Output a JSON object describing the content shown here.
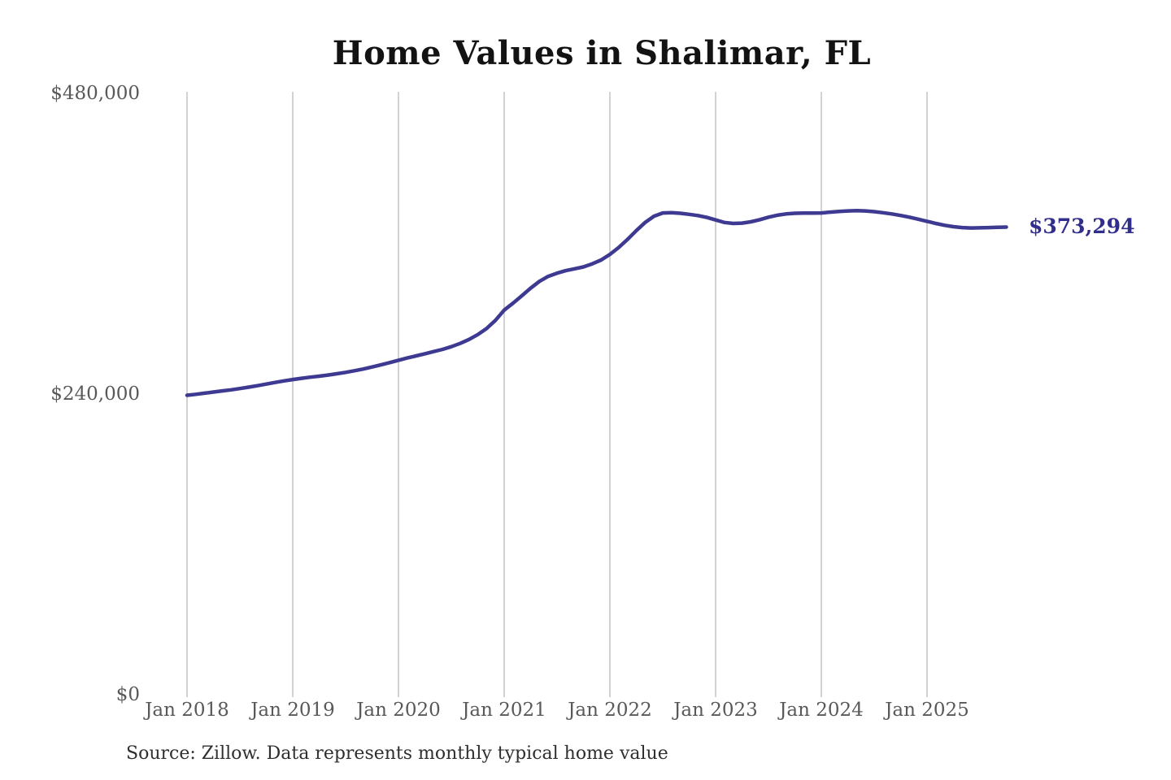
{
  "title": "Home Values in Shalimar, FL",
  "end_label": "$373,294",
  "source_note": "Source: Zillow. Data represents monthly typical home value",
  "colors": {
    "line": "#3e3a92",
    "end_label_text": "#312e8c",
    "gridline": "#bfbfbf",
    "axis_text": "#595959",
    "title_text": "#131313",
    "source_text": "#2f2f2f",
    "background": "#ffffff"
  },
  "chart_data": {
    "type": "line",
    "title": "Home Values in Shalimar, FL",
    "xlabel": "",
    "ylabel": "",
    "ylim": [
      0,
      480000
    ],
    "y_tick_values": [
      0,
      240000,
      480000
    ],
    "y_tick_labels": [
      "$0",
      "$240,000",
      "$480,000"
    ],
    "x_tick_labels": [
      "Jan 2018",
      "Jan 2019",
      "Jan 2020",
      "Jan 2021",
      "Jan 2022",
      "Jan 2023",
      "Jan 2024",
      "Jan 2025"
    ],
    "grid": "vertical-only",
    "legend": "none",
    "frequency": "monthly",
    "x_start": "2018-01",
    "x_end": "2025-10",
    "series": [
      {
        "name": "Typical home value",
        "values": [
          239000,
          239800,
          240700,
          241600,
          242500,
          243400,
          244400,
          245500,
          246700,
          248000,
          249300,
          250500,
          251600,
          252600,
          253500,
          254300,
          255200,
          256200,
          257300,
          258600,
          260000,
          261600,
          263300,
          265100,
          267000,
          268800,
          270500,
          272200,
          273900,
          275700,
          277800,
          280400,
          283600,
          287500,
          292300,
          298800,
          307000,
          312500,
          318500,
          324500,
          330000,
          334000,
          336500,
          338500,
          340000,
          341500,
          344000,
          347000,
          351500,
          357000,
          363500,
          370500,
          377000,
          382000,
          384600,
          384800,
          384300,
          383500,
          382500,
          381000,
          379000,
          377000,
          376200,
          376500,
          377500,
          379200,
          381200,
          382800,
          383800,
          384300,
          384500,
          384500,
          384600,
          385200,
          385800,
          386200,
          386400,
          386200,
          385600,
          384800,
          383800,
          382600,
          381200,
          379600,
          377900,
          376200,
          374700,
          373600,
          372900,
          372600,
          372700,
          372900,
          373100,
          373294
        ]
      }
    ],
    "final_value": 373294,
    "final_value_label": "$373,294"
  }
}
